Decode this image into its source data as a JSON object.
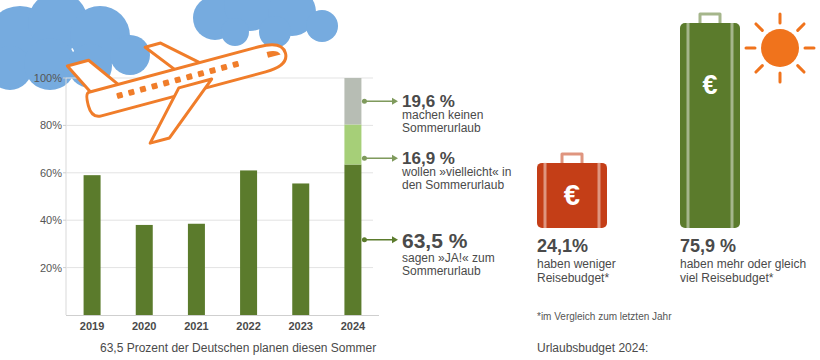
{
  "chart_data": [
    {
      "type": "bar",
      "title": "63,5 Prozent der Deutschen planen diesen Sommer",
      "categories": [
        "2019",
        "2020",
        "2021",
        "2022",
        "2023",
        "2024"
      ],
      "series": [
        {
          "name": "sagen »JA!« zum Sommerurlaub",
          "color": "#5b7b2c",
          "values": [
            59,
            38,
            38.5,
            61,
            55.5,
            63.5
          ],
          "value_labels": [
            null,
            null,
            null,
            null,
            null,
            "63,5 %"
          ]
        },
        {
          "name": "wollen »vielleicht« in den Sommerurlaub",
          "color": "#a6cf78",
          "values": [
            null,
            null,
            null,
            null,
            null,
            16.9
          ],
          "value_labels": [
            null,
            null,
            null,
            null,
            null,
            "16,9 %"
          ]
        },
        {
          "name": "machen keinen Sommerurlaub",
          "color": "#b7bdb4",
          "values": [
            null,
            null,
            null,
            null,
            null,
            19.6
          ],
          "value_labels": [
            null,
            null,
            null,
            null,
            null,
            "19,6 %"
          ]
        }
      ],
      "ylim": [
        0,
        100
      ],
      "yticks": [
        {
          "value": 20,
          "label": "20%"
        },
        {
          "value": 40,
          "label": "40%"
        },
        {
          "value": 60,
          "label": "60%"
        },
        {
          "value": 80,
          "label": "80%"
        },
        {
          "value": 100,
          "label": "100%"
        }
      ],
      "grid": true,
      "stacked": true,
      "data_labels": true
    },
    {
      "type": "pictogram",
      "title": "Urlaubsbudget 2024:",
      "categories": [
        "haben weniger Reisebudget*",
        "haben mehr oder gleich viel Reisebudget*"
      ],
      "values": [
        24.1,
        75.9
      ],
      "value_labels": [
        "24,1%",
        "75,9 %"
      ],
      "colors": [
        "#c43e17",
        "#5b7b2c"
      ],
      "symbol": "€",
      "annotations": [
        "*im Vergleich zum letzten Jahr"
      ],
      "data_labels": true
    }
  ]
}
